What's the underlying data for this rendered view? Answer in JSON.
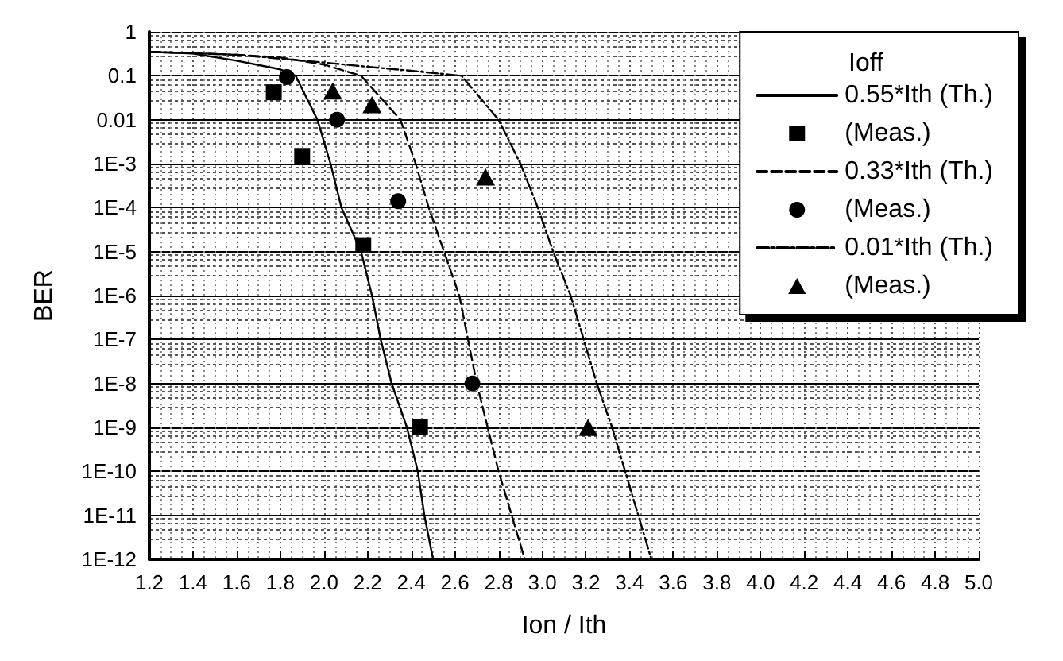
{
  "chart_data": {
    "type": "line",
    "xlabel": "Ion / Ith",
    "ylabel": "BER",
    "legend_title": "Ioff",
    "legend": "top right",
    "grid": true,
    "log": "y",
    "xlim": [
      1.2,
      5.0
    ],
    "xticks": [
      1.2,
      1.4,
      1.6,
      1.8,
      {
        "value": 2.0,
        "label": "2.0"
      },
      2.2,
      2.4,
      2.6,
      2.8,
      {
        "value": 3.0,
        "label": "3.0"
      },
      3.2,
      3.4,
      3.6,
      3.8,
      {
        "value": 4.0,
        "label": "4.0"
      },
      4.2,
      4.4,
      4.6,
      4.8,
      {
        "value": 5.0,
        "label": "5.0"
      }
    ],
    "ylim": [
      1e-12,
      1
    ],
    "yticks": [
      {
        "value": 1e-12,
        "label": "1E-12"
      },
      {
        "value": 1e-11,
        "label": "1E-11"
      },
      {
        "value": 1e-10,
        "label": "1E-10"
      },
      {
        "value": 1e-09,
        "label": "1E-9"
      },
      {
        "value": 1e-08,
        "label": "1E-8"
      },
      {
        "value": 1e-07,
        "label": "1E-7"
      },
      {
        "value": 1e-06,
        "label": "1E-6"
      },
      {
        "value": 1e-05,
        "label": "1E-5"
      },
      {
        "value": 0.0001,
        "label": "1E-4"
      },
      {
        "value": 0.001,
        "label": "1E-3"
      },
      0.01,
      0.1,
      1
    ],
    "series": [
      {
        "name": "0.55*Ith (Th.)",
        "type": "line",
        "marker": "none",
        "line_style": "solid",
        "color": "#000000",
        "x": [
          1.2,
          1.4,
          1.6,
          1.8,
          1.87,
          1.97,
          2.03,
          2.08,
          2.17,
          2.22,
          2.26,
          2.31,
          2.38,
          2.43,
          2.46,
          2.5
        ],
        "values": [
          0.35,
          0.32,
          0.22,
          0.14,
          0.1,
          0.01,
          0.001,
          0.0001,
          1e-05,
          1e-06,
          1e-07,
          1e-08,
          1e-09,
          1e-10,
          1e-11,
          1e-12
        ]
      },
      {
        "name": "(Meas.)",
        "type": "scatter",
        "marker": "square",
        "color": "#000000",
        "x": [
          1.77,
          1.9,
          2.18,
          2.44
        ],
        "values": [
          0.042,
          0.0015,
          1.4e-05,
          1e-09
        ]
      },
      {
        "name": "0.33*Ith (Th.)",
        "type": "line",
        "marker": "none",
        "line_style": "dashed",
        "color": "#000000",
        "x": [
          1.2,
          1.4,
          1.6,
          1.8,
          2.0,
          2.17,
          2.35,
          2.42,
          2.48,
          2.55,
          2.62,
          2.66,
          2.7,
          2.75,
          2.8,
          2.86,
          2.92
        ],
        "values": [
          0.35,
          0.33,
          0.3,
          0.26,
          0.18,
          0.1,
          0.01,
          0.001,
          0.0001,
          1e-05,
          1e-06,
          1e-07,
          1e-08,
          1e-09,
          1e-10,
          1e-11,
          1e-12
        ]
      },
      {
        "name": "(Meas.)",
        "type": "scatter",
        "marker": "circle",
        "color": "#000000",
        "x": [
          1.83,
          2.06,
          2.34,
          2.68
        ],
        "values": [
          0.093,
          0.01,
          0.00014,
          1e-08
        ]
      },
      {
        "name": "0.01*Ith (Th.)",
        "type": "line",
        "marker": "none",
        "line_style": "dotted",
        "color": "#000000",
        "x": [
          1.2,
          1.6,
          2.0,
          2.2,
          2.4,
          2.63,
          2.8,
          2.9,
          2.98,
          3.05,
          3.13,
          3.19,
          3.25,
          3.32,
          3.38,
          3.44,
          3.5
        ],
        "values": [
          0.35,
          0.3,
          0.2,
          0.16,
          0.13,
          0.1,
          0.01,
          0.001,
          0.0001,
          1e-05,
          1e-06,
          1e-07,
          1e-08,
          1e-09,
          1e-10,
          1e-11,
          1e-12
        ]
      },
      {
        "name": "(Meas.)",
        "type": "scatter",
        "marker": "triangle",
        "color": "#000000",
        "x": [
          2.04,
          2.22,
          2.74,
          3.21
        ],
        "values": [
          0.045,
          0.022,
          0.0005,
          1e-09
        ]
      }
    ]
  }
}
